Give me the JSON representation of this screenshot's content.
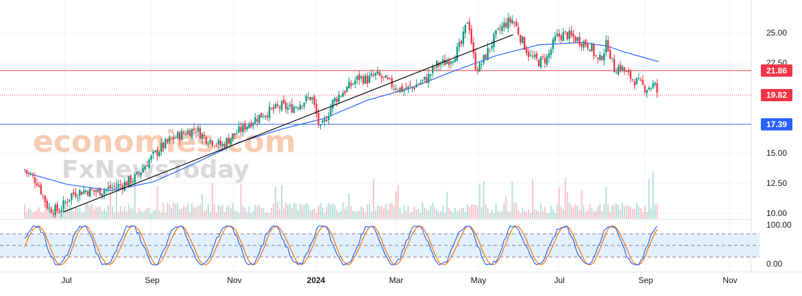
{
  "chart_data": {
    "type": "candlestick",
    "x_axis": {
      "labels": [
        "Jul",
        "Sep",
        "Nov",
        "2024",
        "Mar",
        "May",
        "Jul",
        "Sep",
        "Nov"
      ],
      "bold_label": "2024"
    },
    "price_axis": {
      "ticks": [
        "25.00",
        "22.50",
        "15.00",
        "12.50",
        "10.00"
      ],
      "tick_values": [
        25,
        22.5,
        15,
        12.5,
        10
      ],
      "range": [
        8,
        28
      ]
    },
    "price_badges": [
      {
        "label": "21.86",
        "value": 21.86,
        "color": "#f23645"
      },
      {
        "label": "19.82",
        "value": 19.82,
        "color": "#f23645"
      },
      {
        "label": "17.39",
        "value": 17.39,
        "color": "#2962ff"
      }
    ],
    "horizontal_lines": [
      {
        "value": 21.86,
        "color": "#f23645",
        "style": "solid"
      },
      {
        "value": 19.82,
        "color": "#f23645",
        "style": "dotted"
      },
      {
        "value": 17.39,
        "color": "#2962ff",
        "style": "solid"
      }
    ],
    "trendline": {
      "start": {
        "month": 0.9,
        "value": 10.1
      },
      "end": {
        "month": 11.4,
        "value": 24.85
      },
      "color": "#000000"
    },
    "price_path": [
      [
        0,
        13.6
      ],
      [
        0.3,
        12.6
      ],
      [
        0.55,
        10.4
      ],
      [
        0.8,
        10.2
      ],
      [
        1.1,
        11.6
      ],
      [
        1.4,
        11.9
      ],
      [
        1.7,
        11.8
      ],
      [
        2.0,
        12.1
      ],
      [
        2.3,
        12.4
      ],
      [
        2.6,
        13.0
      ],
      [
        2.9,
        14.4
      ],
      [
        3.2,
        15.5
      ],
      [
        3.5,
        16.3
      ],
      [
        3.8,
        16.8
      ],
      [
        4.0,
        17.0
      ],
      [
        4.2,
        16.3
      ],
      [
        4.4,
        16.0
      ],
      [
        4.6,
        15.6
      ],
      [
        4.8,
        16.3
      ],
      [
        5.0,
        16.8
      ],
      [
        5.2,
        17.4
      ],
      [
        5.4,
        17.9
      ],
      [
        5.6,
        18.3
      ],
      [
        5.8,
        18.6
      ],
      [
        6.0,
        18.9
      ],
      [
        6.2,
        18.7
      ],
      [
        6.5,
        19.3
      ],
      [
        6.7,
        19.7
      ],
      [
        6.9,
        16.9
      ],
      [
        7.0,
        17.6
      ],
      [
        7.2,
        19.3
      ],
      [
        7.4,
        20.0
      ],
      [
        7.6,
        20.6
      ],
      [
        7.8,
        21.3
      ],
      [
        8.0,
        21.1
      ],
      [
        8.2,
        21.5
      ],
      [
        8.4,
        21.1
      ],
      [
        8.6,
        20.6
      ],
      [
        8.8,
        20.3
      ],
      [
        9.0,
        20.4
      ],
      [
        9.2,
        20.8
      ],
      [
        9.4,
        21.2
      ],
      [
        9.6,
        22.3
      ],
      [
        9.8,
        22.5
      ],
      [
        10.0,
        23.0
      ],
      [
        10.2,
        24.1
      ],
      [
        10.35,
        26.3
      ],
      [
        10.5,
        22.4
      ],
      [
        10.6,
        22.0
      ],
      [
        10.8,
        23.4
      ],
      [
        11.0,
        24.8
      ],
      [
        11.2,
        25.7
      ],
      [
        11.4,
        26.1
      ],
      [
        11.6,
        24.4
      ],
      [
        11.8,
        23.0
      ],
      [
        12.0,
        22.6
      ],
      [
        12.2,
        22.9
      ],
      [
        12.4,
        24.6
      ],
      [
        12.6,
        24.9
      ],
      [
        12.8,
        24.6
      ],
      [
        13.0,
        24.3
      ],
      [
        13.2,
        23.9
      ],
      [
        13.4,
        22.5
      ],
      [
        13.6,
        24.2
      ],
      [
        13.75,
        22.0
      ],
      [
        13.9,
        22.2
      ],
      [
        14.1,
        21.4
      ],
      [
        14.3,
        20.9
      ],
      [
        14.5,
        20.4
      ],
      [
        14.7,
        20.7
      ],
      [
        14.8,
        19.7
      ]
    ],
    "moving_average": [
      [
        0,
        13.4
      ],
      [
        1,
        12.4
      ],
      [
        2,
        11.9
      ],
      [
        3,
        12.6
      ],
      [
        4,
        14.2
      ],
      [
        5,
        15.9
      ],
      [
        6,
        17.0
      ],
      [
        7,
        17.9
      ],
      [
        8,
        19.4
      ],
      [
        9,
        20.4
      ],
      [
        10,
        21.8
      ],
      [
        11,
        23.1
      ],
      [
        12,
        24.0
      ],
      [
        13,
        24.2
      ],
      [
        13.6,
        23.9
      ],
      [
        14,
        23.4
      ],
      [
        14.5,
        22.9
      ],
      [
        14.8,
        22.6
      ]
    ],
    "moving_average_color": "#2962ff",
    "up_color": "#089981",
    "down_color": "#f23645",
    "oscillator": {
      "ticks": [
        "100.00",
        "0.00"
      ],
      "levels": [
        80,
        50,
        20
      ],
      "k_color": "#2962ff",
      "d_color": "#ff6d00",
      "band_fill": "#e3f0fd"
    },
    "watermark": {
      "line1": "economies.com",
      "line2": "FxNewsToday"
    }
  }
}
